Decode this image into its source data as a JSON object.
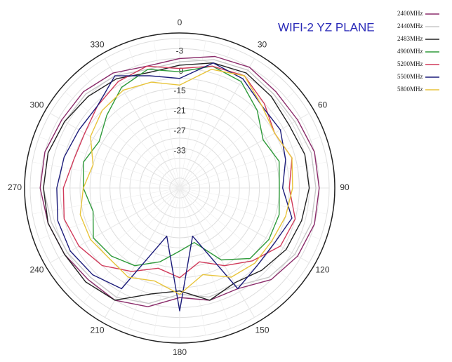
{
  "chart_data": {
    "type": "polar",
    "title": "WIFI-2 YZ PLANE",
    "theta": [
      0,
      15,
      30,
      45,
      60,
      75,
      90,
      105,
      120,
      135,
      150,
      165,
      180,
      195,
      210,
      225,
      240,
      255,
      270,
      285,
      300,
      315,
      330,
      345
    ],
    "thetaticks": [
      0,
      30,
      60,
      90,
      120,
      150,
      180,
      210,
      240,
      270,
      300,
      330
    ],
    "rlim": [
      -45,
      0
    ],
    "rticks": [
      -3,
      -9,
      -15,
      -21,
      -27,
      -33
    ],
    "rgrid": [
      -42,
      -39,
      -36,
      -33,
      -30,
      -27,
      -24,
      -21,
      -18,
      -15,
      -12,
      -9,
      -6,
      -3,
      0
    ],
    "series": [
      {
        "name": "2400MHz",
        "color": "#8b2d6b",
        "values": [
          -6,
          -4,
          -3,
          -4,
          -4,
          -3,
          -3,
          -3,
          -4,
          -6,
          -10,
          -10,
          -12,
          -8,
          -6,
          -6,
          -5,
          -4,
          -3,
          -3,
          -4,
          -4,
          -5,
          -7
        ]
      },
      {
        "name": "2440MHz",
        "color": "#c8c8c8",
        "values": [
          -7,
          -5,
          -4,
          -5,
          -5,
          -4,
          -4,
          -4,
          -5,
          -7,
          -11,
          -11,
          -13,
          -9,
          -7,
          -7,
          -6,
          -5,
          -4,
          -4,
          -5,
          -5,
          -6,
          -8
        ]
      },
      {
        "name": "2483MHz",
        "color": "#222222",
        "values": [
          -8,
          -6,
          -5,
          -6,
          -7,
          -6,
          -6,
          -7,
          -8,
          -10,
          -12,
          -10,
          -14,
          -12,
          -6,
          -5,
          -5,
          -4,
          -4,
          -4,
          -5,
          -6,
          -7,
          -9
        ]
      },
      {
        "name": "4900MHz",
        "color": "#2e9a3a",
        "values": [
          -10,
          -7,
          -8,
          -12,
          -16,
          -14,
          -15,
          -14,
          -14,
          -15,
          -20,
          -28,
          -26,
          -22,
          -18,
          -16,
          -15,
          -18,
          -16,
          -15,
          -17,
          -14,
          -10,
          -8
        ]
      },
      {
        "name": "5200MHz",
        "color": "#d03a5a",
        "values": [
          -9,
          -7,
          -6,
          -9,
          -12,
          -10,
          -12,
          -9,
          -10,
          -14,
          -18,
          -22,
          -18,
          -20,
          -16,
          -12,
          -10,
          -9,
          -10,
          -12,
          -12,
          -10,
          -8,
          -7
        ]
      },
      {
        "name": "5500MHz",
        "color": "#1c1c7a",
        "values": [
          -12,
          -6,
          -7,
          -10,
          -10,
          -12,
          -14,
          -10,
          -12,
          -12,
          -10,
          -30,
          -8,
          -30,
          -10,
          -8,
          -7,
          -7,
          -8,
          -9,
          -10,
          -10,
          -6,
          -10
        ]
      },
      {
        "name": "5800MHz",
        "color": "#e8c43a",
        "values": [
          -14,
          -8,
          -6,
          -10,
          -12,
          -10,
          -11,
          -12,
          -13,
          -13,
          -14,
          -18,
          -13,
          -16,
          -14,
          -15,
          -14,
          -14,
          -16,
          -18,
          -14,
          -12,
          -11,
          -12
        ]
      }
    ]
  }
}
